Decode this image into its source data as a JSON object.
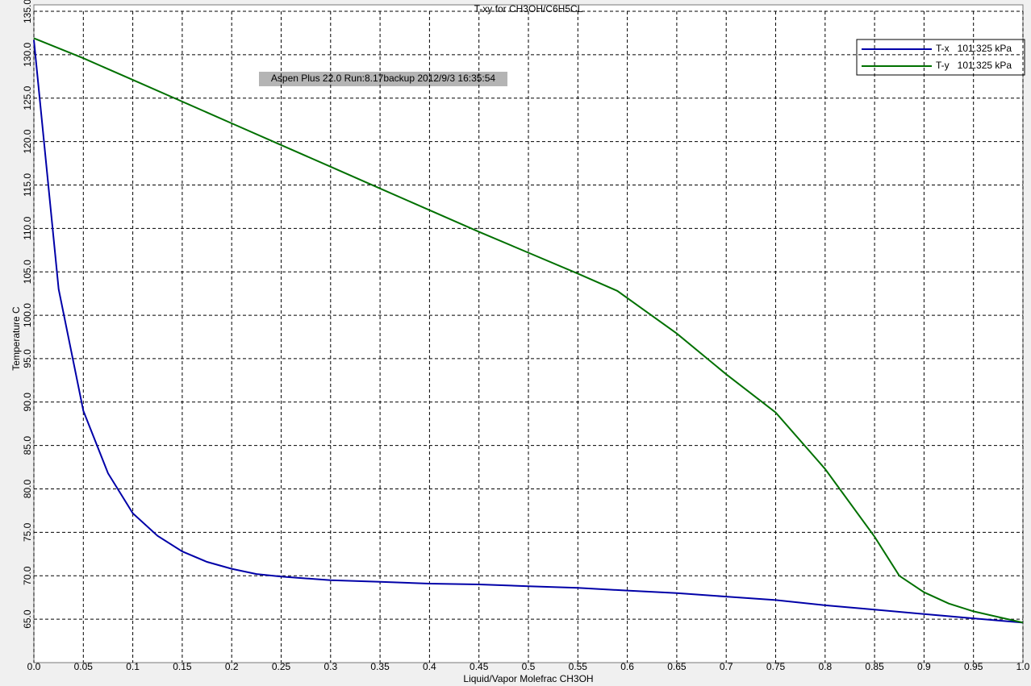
{
  "chart_data": {
    "type": "line",
    "title": "T-xy for CH3OH/C6H5CL",
    "x_label": "Liquid/Vapor Molefrac CH3OH",
    "y_label": "Temperature  C",
    "annotation": "Aspen Plus 22.0 Run:8.17backup  2012/9/3 16:35:54",
    "grid": true,
    "legend": "upper right",
    "xlim": [
      0,
      1
    ],
    "ylim": [
      60,
      135
    ],
    "xticks": [
      {
        "value": 0,
        "label": "0.0"
      },
      0.05,
      0.1,
      0.15,
      0.2,
      0.25,
      0.3,
      0.35,
      0.4,
      0.45,
      0.5,
      0.55,
      0.6,
      0.65,
      0.7,
      0.75,
      0.8,
      0.85,
      0.9,
      0.95,
      {
        "value": 1,
        "label": "1.0"
      }
    ],
    "yticks": [
      {
        "value": 65,
        "label": "65.0"
      },
      {
        "value": 70,
        "label": "70.0"
      },
      {
        "value": 75,
        "label": "75.0"
      },
      {
        "value": 80,
        "label": "80.0"
      },
      {
        "value": 85,
        "label": "85.0"
      },
      {
        "value": 90,
        "label": "90.0"
      },
      {
        "value": 95,
        "label": "95.0"
      },
      {
        "value": 100,
        "label": "100.0"
      },
      {
        "value": 105,
        "label": "105.0"
      },
      {
        "value": 110,
        "label": "110.0"
      },
      {
        "value": 115,
        "label": "115.0"
      },
      {
        "value": 120,
        "label": "120.0"
      },
      {
        "value": 125,
        "label": "125.0"
      },
      {
        "value": 130,
        "label": "130.0"
      },
      {
        "value": 135,
        "label": "135.0"
      }
    ],
    "series": [
      {
        "name": "T-x   101.325 kPa",
        "color": "#0000a8",
        "x": [
          0,
          0.025,
          0.05,
          0.075,
          0.1,
          0.125,
          0.15,
          0.175,
          0.2,
          0.225,
          0.25,
          0.3,
          0.35,
          0.4,
          0.45,
          0.5,
          0.55,
          0.6,
          0.65,
          0.7,
          0.75,
          0.8,
          0.85,
          0.9,
          0.95,
          1
        ],
        "values": [
          131.7,
          103,
          89,
          81.8,
          77.2,
          74.6,
          72.8,
          71.6,
          70.8,
          70.2,
          69.9,
          69.5,
          69.3,
          69.1,
          69.0,
          68.8,
          68.6,
          68.3,
          68.0,
          67.6,
          67.2,
          66.6,
          66.1,
          65.6,
          65.1,
          64.6
        ]
      },
      {
        "name": "T-y   101.325 kPa",
        "color": "#007000",
        "x": [
          0,
          0.05,
          0.1,
          0.15,
          0.2,
          0.25,
          0.3,
          0.35,
          0.4,
          0.45,
          0.5,
          0.55,
          0.59,
          0.65,
          0.7,
          0.75,
          0.8,
          0.85,
          0.875,
          0.9,
          0.925,
          0.95,
          1
        ],
        "values": [
          131.9,
          129.6,
          127.1,
          124.6,
          122.1,
          119.6,
          117.1,
          114.6,
          112.1,
          109.6,
          107.2,
          104.8,
          102.8,
          97.9,
          93.2,
          88.8,
          82.3,
          74.5,
          70.0,
          68.1,
          66.8,
          65.9,
          64.6
        ]
      }
    ]
  }
}
